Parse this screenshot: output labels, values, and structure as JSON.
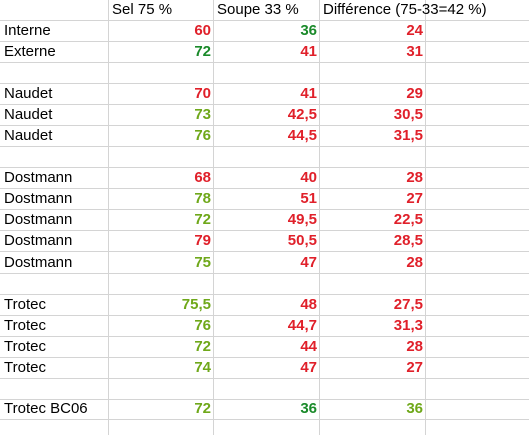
{
  "header": [
    "",
    "Sel 75 %",
    "Soupe 33 %",
    "Différence (75-33=42 %)"
  ],
  "rows": [
    {
      "label": "Interne",
      "sel": "60",
      "soupe": "36",
      "diff": "24",
      "sel_color": "#e0202a",
      "soupe_color": "#1a8a2a",
      "diff_color": "#e0202a"
    },
    {
      "label": "Externe",
      "sel": "72",
      "soupe": "41",
      "diff": "31",
      "sel_color": "#1a8a2a",
      "soupe_color": "#e0202a",
      "diff_color": "#e0202a"
    },
    {
      "label": "",
      "sel": "",
      "soupe": "",
      "diff": ""
    },
    {
      "label": "Naudet",
      "sel": "70",
      "soupe": "41",
      "diff": "29",
      "sel_color": "#e0202a",
      "soupe_color": "#e0202a",
      "diff_color": "#e0202a"
    },
    {
      "label": "Naudet",
      "sel": "73",
      "soupe": "42,5",
      "diff": "30,5",
      "sel_color": "#6fa81a",
      "soupe_color": "#e0202a",
      "diff_color": "#e0202a"
    },
    {
      "label": "Naudet",
      "sel": "76",
      "soupe": "44,5",
      "diff": "31,5",
      "sel_color": "#6fa81a",
      "soupe_color": "#e0202a",
      "diff_color": "#e0202a"
    },
    {
      "label": "",
      "sel": "",
      "soupe": "",
      "diff": ""
    },
    {
      "label": "Dostmann",
      "sel": "68",
      "soupe": "40",
      "diff": "28",
      "sel_color": "#e0202a",
      "soupe_color": "#e0202a",
      "diff_color": "#e0202a"
    },
    {
      "label": "Dostmann",
      "sel": "78",
      "soupe": "51",
      "diff": "27",
      "sel_color": "#6fa81a",
      "soupe_color": "#e0202a",
      "diff_color": "#e0202a"
    },
    {
      "label": "Dostmann",
      "sel": "72",
      "soupe": "49,5",
      "diff": "22,5",
      "sel_color": "#6fa81a",
      "soupe_color": "#e0202a",
      "diff_color": "#e0202a"
    },
    {
      "label": "Dostmann",
      "sel": "79",
      "soupe": "50,5",
      "diff": "28,5",
      "sel_color": "#e0202a",
      "soupe_color": "#e0202a",
      "diff_color": "#e0202a"
    },
    {
      "label": "Dostmann",
      "sel": "75",
      "soupe": "47",
      "diff": "28",
      "sel_color": "#6fa81a",
      "soupe_color": "#e0202a",
      "diff_color": "#e0202a"
    },
    {
      "label": "",
      "sel": "",
      "soupe": "",
      "diff": ""
    },
    {
      "label": "Trotec",
      "sel": "75,5",
      "soupe": "48",
      "diff": "27,5",
      "sel_color": "#6fa81a",
      "soupe_color": "#e0202a",
      "diff_color": "#e0202a"
    },
    {
      "label": "Trotec",
      "sel": "76",
      "soupe": "44,7",
      "diff": "31,3",
      "sel_color": "#6fa81a",
      "soupe_color": "#e0202a",
      "diff_color": "#e0202a"
    },
    {
      "label": "Trotec",
      "sel": "72",
      "soupe": "44",
      "diff": "28",
      "sel_color": "#6fa81a",
      "soupe_color": "#e0202a",
      "diff_color": "#e0202a"
    },
    {
      "label": "Trotec",
      "sel": "74",
      "soupe": "47",
      "diff": "27",
      "sel_color": "#6fa81a",
      "soupe_color": "#e0202a",
      "diff_color": "#e0202a"
    },
    {
      "label": "",
      "sel": "",
      "soupe": "",
      "diff": ""
    },
    {
      "label": "Trotec BC06",
      "sel": "72",
      "soupe": "36",
      "diff": "36",
      "sel_color": "#6fa81a",
      "soupe_color": "#1a8a2a",
      "diff_color": "#6fa81a"
    }
  ]
}
